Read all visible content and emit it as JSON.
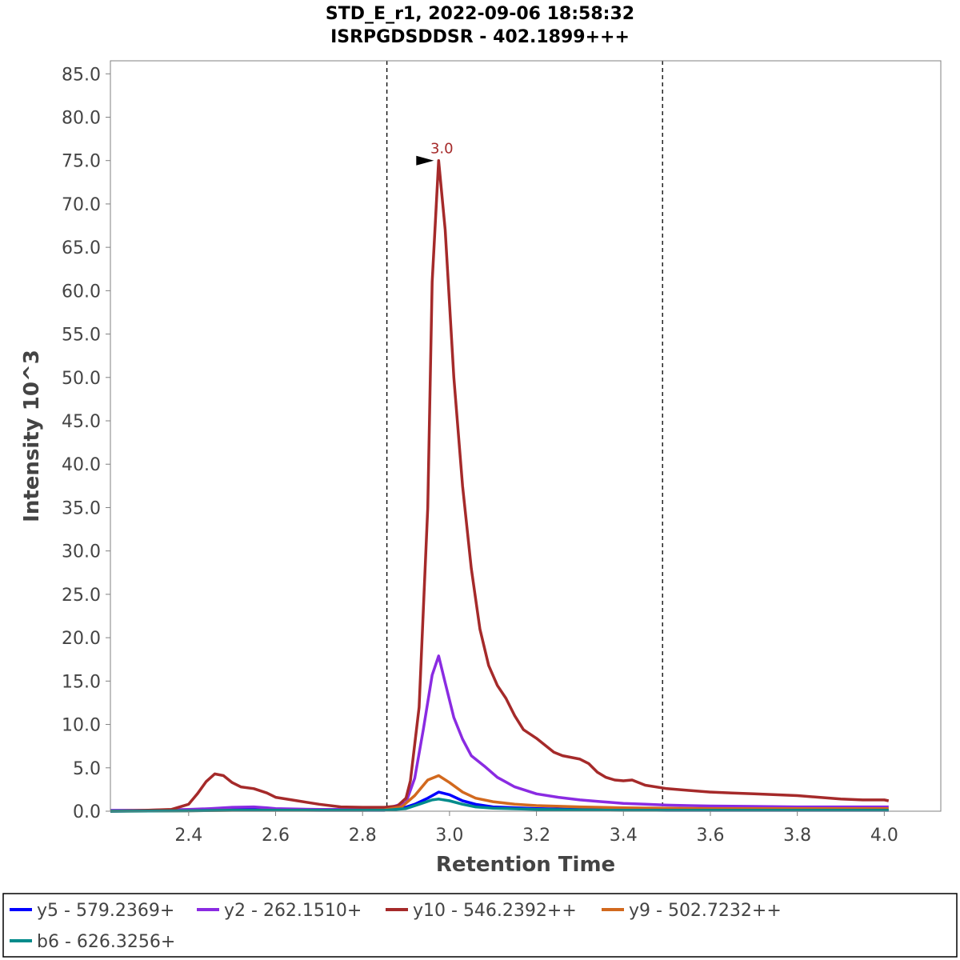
{
  "chart_data": {
    "type": "line",
    "title": "STD_E_r1, 2022-09-06 18:58:32",
    "subtitle": "ISRPGDSDDSR - 402.1899+++",
    "xlabel": "Retention Time",
    "ylabel": "Intensity 10^3",
    "xlim": [
      2.22,
      4.13
    ],
    "ylim": [
      0,
      86.5
    ],
    "x_ticks": [
      2.4,
      2.6,
      2.8,
      3.0,
      3.2,
      3.4,
      3.6,
      3.8,
      4.0
    ],
    "x_tick_labels": [
      "2.4",
      "2.6",
      "2.8",
      "3.0",
      "3.2",
      "3.4",
      "3.6",
      "3.8",
      "4.0"
    ],
    "y_ticks": [
      0,
      5,
      10,
      15,
      20,
      25,
      30,
      35,
      40,
      45,
      50,
      55,
      60,
      65,
      70,
      75,
      80,
      85
    ],
    "y_tick_labels": [
      "0.0",
      "5.0",
      "10.0",
      "15.0",
      "20.0",
      "25.0",
      "30.0",
      "35.0",
      "40.0",
      "45.0",
      "50.0",
      "55.0",
      "60.0",
      "65.0",
      "70.0",
      "75.0",
      "80.0",
      "85.0"
    ],
    "integration_boundaries": [
      2.856,
      3.49
    ],
    "apex": {
      "label": "3.0",
      "x": 2.975,
      "y": 75.0,
      "color": "#a52a2a"
    },
    "grid": false,
    "legend_position": "bottom",
    "series": [
      {
        "name": "y5 - 579.2369+",
        "color": "#0000ff",
        "points": [
          [
            2.22,
            0.0
          ],
          [
            2.3,
            0.05
          ],
          [
            2.4,
            0.1
          ],
          [
            2.5,
            0.2
          ],
          [
            2.6,
            0.15
          ],
          [
            2.7,
            0.1
          ],
          [
            2.8,
            0.1
          ],
          [
            2.85,
            0.1
          ],
          [
            2.89,
            0.3
          ],
          [
            2.92,
            0.8
          ],
          [
            2.95,
            1.5
          ],
          [
            2.975,
            2.2
          ],
          [
            3.0,
            1.9
          ],
          [
            3.03,
            1.2
          ],
          [
            3.06,
            0.8
          ],
          [
            3.1,
            0.5
          ],
          [
            3.2,
            0.3
          ],
          [
            3.3,
            0.2
          ],
          [
            3.4,
            0.15
          ],
          [
            3.5,
            0.1
          ],
          [
            3.6,
            0.1
          ],
          [
            3.8,
            0.1
          ],
          [
            4.01,
            0.1
          ]
        ]
      },
      {
        "name": "y2 - 262.1510+",
        "color": "#8a2be2",
        "points": [
          [
            2.22,
            0.1
          ],
          [
            2.3,
            0.1
          ],
          [
            2.4,
            0.2
          ],
          [
            2.45,
            0.3
          ],
          [
            2.5,
            0.45
          ],
          [
            2.55,
            0.5
          ],
          [
            2.58,
            0.4
          ],
          [
            2.6,
            0.3
          ],
          [
            2.7,
            0.2
          ],
          [
            2.8,
            0.2
          ],
          [
            2.85,
            0.2
          ],
          [
            2.9,
            1.0
          ],
          [
            2.92,
            3.8
          ],
          [
            2.94,
            9.5
          ],
          [
            2.96,
            15.7
          ],
          [
            2.975,
            17.9
          ],
          [
            2.99,
            14.8
          ],
          [
            3.01,
            10.8
          ],
          [
            3.03,
            8.3
          ],
          [
            3.05,
            6.4
          ],
          [
            3.08,
            5.2
          ],
          [
            3.11,
            3.9
          ],
          [
            3.15,
            2.8
          ],
          [
            3.2,
            2.0
          ],
          [
            3.25,
            1.6
          ],
          [
            3.3,
            1.3
          ],
          [
            3.35,
            1.1
          ],
          [
            3.4,
            0.9
          ],
          [
            3.45,
            0.8
          ],
          [
            3.5,
            0.7
          ],
          [
            3.55,
            0.65
          ],
          [
            3.6,
            0.6
          ],
          [
            3.7,
            0.55
          ],
          [
            3.8,
            0.5
          ],
          [
            3.9,
            0.5
          ],
          [
            4.01,
            0.5
          ]
        ]
      },
      {
        "name": "y10 - 546.2392++",
        "color": "#a52a2a",
        "points": [
          [
            2.22,
            0.0
          ],
          [
            2.3,
            0.1
          ],
          [
            2.36,
            0.2
          ],
          [
            2.4,
            0.8
          ],
          [
            2.42,
            2.0
          ],
          [
            2.44,
            3.4
          ],
          [
            2.46,
            4.3
          ],
          [
            2.48,
            4.1
          ],
          [
            2.5,
            3.3
          ],
          [
            2.52,
            2.8
          ],
          [
            2.55,
            2.6
          ],
          [
            2.58,
            2.1
          ],
          [
            2.6,
            1.6
          ],
          [
            2.65,
            1.2
          ],
          [
            2.7,
            0.8
          ],
          [
            2.75,
            0.5
          ],
          [
            2.8,
            0.45
          ],
          [
            2.85,
            0.45
          ],
          [
            2.88,
            0.6
          ],
          [
            2.9,
            1.5
          ],
          [
            2.91,
            3.5
          ],
          [
            2.93,
            12.0
          ],
          [
            2.95,
            35.0
          ],
          [
            2.96,
            61.0
          ],
          [
            2.975,
            75.0
          ],
          [
            2.99,
            67.0
          ],
          [
            3.01,
            50.0
          ],
          [
            3.03,
            37.5
          ],
          [
            3.05,
            28.0
          ],
          [
            3.07,
            21.0
          ],
          [
            3.09,
            16.8
          ],
          [
            3.11,
            14.5
          ],
          [
            3.13,
            13.0
          ],
          [
            3.15,
            11.0
          ],
          [
            3.17,
            9.4
          ],
          [
            3.2,
            8.4
          ],
          [
            3.22,
            7.6
          ],
          [
            3.24,
            6.8
          ],
          [
            3.26,
            6.4
          ],
          [
            3.3,
            6.0
          ],
          [
            3.32,
            5.5
          ],
          [
            3.34,
            4.5
          ],
          [
            3.36,
            3.9
          ],
          [
            3.38,
            3.6
          ],
          [
            3.4,
            3.5
          ],
          [
            3.42,
            3.6
          ],
          [
            3.45,
            3.0
          ],
          [
            3.5,
            2.6
          ],
          [
            3.55,
            2.4
          ],
          [
            3.6,
            2.2
          ],
          [
            3.65,
            2.1
          ],
          [
            3.7,
            2.0
          ],
          [
            3.75,
            1.9
          ],
          [
            3.8,
            1.8
          ],
          [
            3.85,
            1.6
          ],
          [
            3.9,
            1.4
          ],
          [
            3.95,
            1.3
          ],
          [
            4.0,
            1.3
          ],
          [
            4.01,
            1.2
          ]
        ]
      },
      {
        "name": "y9 - 502.7232++",
        "color": "#d2691e",
        "points": [
          [
            2.22,
            0.0
          ],
          [
            2.4,
            0.05
          ],
          [
            2.5,
            0.1
          ],
          [
            2.6,
            0.1
          ],
          [
            2.7,
            0.1
          ],
          [
            2.8,
            0.1
          ],
          [
            2.85,
            0.15
          ],
          [
            2.89,
            0.5
          ],
          [
            2.92,
            1.8
          ],
          [
            2.95,
            3.6
          ],
          [
            2.975,
            4.1
          ],
          [
            3.0,
            3.3
          ],
          [
            3.03,
            2.2
          ],
          [
            3.06,
            1.5
          ],
          [
            3.1,
            1.1
          ],
          [
            3.15,
            0.8
          ],
          [
            3.2,
            0.65
          ],
          [
            3.3,
            0.5
          ],
          [
            3.4,
            0.4
          ],
          [
            3.5,
            0.35
          ],
          [
            3.6,
            0.3
          ],
          [
            3.8,
            0.3
          ],
          [
            4.01,
            0.3
          ]
        ]
      },
      {
        "name": "b6 - 626.3256+",
        "color": "#008b8b",
        "points": [
          [
            2.22,
            0.0
          ],
          [
            2.4,
            0.05
          ],
          [
            2.5,
            0.1
          ],
          [
            2.6,
            0.1
          ],
          [
            2.8,
            0.1
          ],
          [
            2.85,
            0.1
          ],
          [
            2.9,
            0.3
          ],
          [
            2.93,
            0.8
          ],
          [
            2.96,
            1.3
          ],
          [
            2.975,
            1.4
          ],
          [
            3.0,
            1.2
          ],
          [
            3.03,
            0.8
          ],
          [
            3.06,
            0.5
          ],
          [
            3.1,
            0.35
          ],
          [
            3.2,
            0.2
          ],
          [
            3.3,
            0.15
          ],
          [
            3.4,
            0.1
          ],
          [
            3.6,
            0.1
          ],
          [
            3.8,
            0.1
          ],
          [
            4.01,
            0.1
          ]
        ]
      }
    ]
  }
}
